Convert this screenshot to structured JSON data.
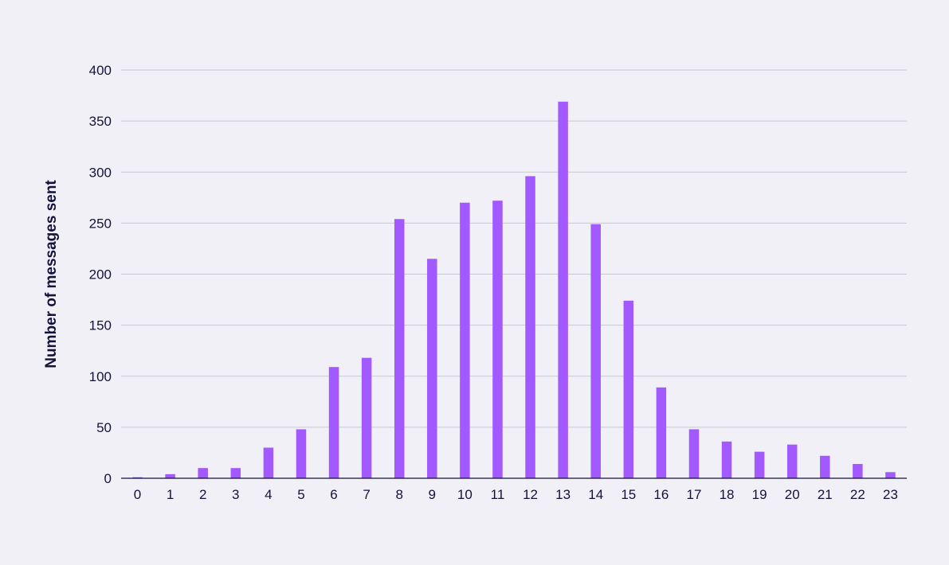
{
  "chart_data": {
    "type": "bar",
    "title": "",
    "xlabel": "",
    "ylabel": "Number of messages sent",
    "categories": [
      "0",
      "1",
      "2",
      "3",
      "4",
      "5",
      "6",
      "7",
      "8",
      "9",
      "10",
      "11",
      "12",
      "13",
      "14",
      "15",
      "16",
      "17",
      "18",
      "19",
      "20",
      "21",
      "22",
      "23"
    ],
    "values": [
      1,
      4,
      10,
      10,
      30,
      48,
      109,
      118,
      254,
      215,
      270,
      272,
      296,
      369,
      249,
      174,
      89,
      48,
      36,
      26,
      33,
      22,
      14,
      6
    ],
    "ylim": [
      0,
      400
    ],
    "yticks": [
      0,
      50,
      100,
      150,
      200,
      250,
      300,
      350,
      400
    ],
    "grid": true,
    "legend": "none",
    "colors": {
      "bar": "#a259ff",
      "grid": "#c9c8d2",
      "axis": "#14123a",
      "text": "#14123a",
      "background": "#f1f0f6"
    }
  }
}
